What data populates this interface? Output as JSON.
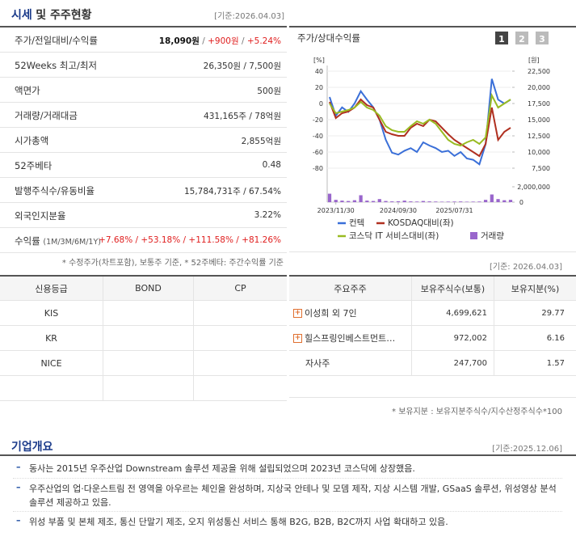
{
  "market": {
    "title_strong": "시세",
    "title_rest": "및 주주현황",
    "date": "[기준:2026.04.03]",
    "rows": [
      {
        "label": "주가/전일대비/수익률",
        "value": [
          {
            "text": "18,090원",
            "color": "#111111",
            "bold": true
          },
          {
            "text": " / ",
            "color": "#777777"
          },
          {
            "text": "+900원",
            "color": "#e02020"
          },
          {
            "text": " / ",
            "color": "#777777"
          },
          {
            "text": "+5.24%",
            "color": "#e02020"
          }
        ]
      },
      {
        "label": "52Weeks 최고/최저",
        "value": "26,350원 / 7,500원"
      },
      {
        "label": "액면가",
        "value": "500원"
      },
      {
        "label": "거래량/거래대금",
        "value": "431,165주 / 78억원"
      },
      {
        "label": "시가총액",
        "value": "2,855억원"
      },
      {
        "label": "52주베타",
        "value": "0.48"
      },
      {
        "label": "발행주식수/유동비율",
        "value": "15,784,731주 / 67.54%"
      },
      {
        "label": "외국인지분율",
        "value": "3.22%"
      },
      {
        "label": "수익률",
        "sublabel": "(1M/3M/6M/1Y)",
        "value": "+7.68% / +53.18% / +111.58% / +81.26%",
        "color": "#e02020"
      }
    ],
    "note": "* 수정주가(차트포함), 보통주 기준, * 52주베타: 주간수익률 기준"
  },
  "price_chart": {
    "type": "line",
    "title": "주가/상대수익률",
    "buttons": [
      "1",
      "2",
      "3"
    ],
    "ylabel": "[%]",
    "y2label": "[원]",
    "ylim": [
      -80,
      40
    ],
    "yticks": [
      40,
      20,
      0,
      -20,
      -40,
      -60,
      -80
    ],
    "y2lim": [
      7500,
      22500
    ],
    "y2ticks": [
      {
        "value": 22500,
        "label": "22,500"
      },
      {
        "value": 20000,
        "label": "20,000"
      },
      {
        "value": 17500,
        "label": "17,500"
      },
      {
        "value": 15000,
        "label": "15,000"
      },
      {
        "value": 12500,
        "label": "12,500"
      },
      {
        "value": 10000,
        "label": "10,000"
      },
      {
        "value": 7500,
        "label": "7,500"
      }
    ],
    "volume_lim": [
      0,
      2000000
    ],
    "volume_ticks": [
      {
        "value": 2000000,
        "label": "2,000,000"
      },
      0
    ],
    "xlim": [
      0,
      29
    ],
    "xticks": [
      {
        "value": 1,
        "label": "2023/11/30"
      },
      {
        "value": 11,
        "label": "2024/09/30"
      },
      {
        "value": 20,
        "label": "2025/07/31"
      }
    ],
    "series": [
      {
        "name": "컨텍",
        "color": "#3a6fd8",
        "axis": "y2",
        "values": [
          18500,
          15600,
          16900,
          16200,
          17500,
          19400,
          18100,
          16900,
          15000,
          11900,
          9900,
          9600,
          10200,
          10600,
          10000,
          11500,
          11000,
          10600,
          10000,
          10200,
          9400,
          10000,
          9000,
          8800,
          8100,
          11200,
          21300,
          18100,
          17500,
          18090
        ]
      },
      {
        "name": "KOSDAQ대비(좌)",
        "color": "#b03020",
        "values": [
          2,
          -18,
          -12,
          -10,
          -5,
          5,
          -2,
          -5,
          -20,
          -35,
          -38,
          -40,
          -40,
          -30,
          -25,
          -28,
          -20,
          -22,
          -30,
          -38,
          -45,
          -50,
          -55,
          -60,
          -65,
          -50,
          -5,
          -45,
          -35,
          -30
        ]
      },
      {
        "name": "코스닥 IT 서비스대비(좌)",
        "color": "#99bb22",
        "values": [
          0,
          -12,
          -10,
          -8,
          -5,
          2,
          -5,
          -8,
          -15,
          -28,
          -33,
          -35,
          -35,
          -28,
          -22,
          -25,
          -20,
          -25,
          -35,
          -45,
          -50,
          -52,
          -48,
          -45,
          -50,
          -42,
          10,
          -5,
          0,
          5
        ]
      }
    ],
    "volume": {
      "name": "거래량",
      "color": "#9966cc",
      "values": [
        1100000,
        300000,
        200000,
        150000,
        250000,
        900000,
        200000,
        150000,
        400000,
        150000,
        100000,
        120000,
        200000,
        100000,
        80000,
        150000,
        100000,
        80000,
        60000,
        70000,
        80000,
        90000,
        60000,
        70000,
        80000,
        300000,
        1000000,
        400000,
        250000,
        300000
      ]
    }
  },
  "credit": {
    "header": [
      "신용등급",
      "BOND",
      "CP"
    ],
    "agencies": [
      "KIS",
      "KR",
      "NICE"
    ]
  },
  "holders": {
    "date": "[기준: 2026.04.03]",
    "header": [
      "주요주주",
      "보유주식수(보통)",
      "보유지분(%)"
    ],
    "rows": [
      {
        "name": "이성희 외 7인",
        "shares": "4,699,621",
        "pct": "29.77",
        "expandable": true
      },
      {
        "name": "힐스프링인베스트먼트…",
        "shares": "972,002",
        "pct": "6.16",
        "expandable": true
      },
      {
        "name": "자사주",
        "shares": "247,700",
        "pct": "1.57",
        "expandable": false
      }
    ],
    "note": "* 보유지분 : 보유지분주식수/지수산정주식수*100"
  },
  "overview": {
    "title": "기업개요",
    "date": "[기준:2025.12.06]",
    "bullets": [
      "동사는 2015년 우주산업 Downstream 솔루션 제공을 위해 설립되었으며 2023년 코스닥에 상장했음.",
      "우주산업의 업·다운스트림 전 영역을 아우르는 체인을 완성하며, 지상국 안테나 및 모뎀 제작, 지상 시스템 개발, GSaaS 솔루션, 위성영상 분석 솔루션 제공하고 있음.",
      "위성 부품 및 본체 제조, 통신 단말기 제조, 오지 위성통신 서비스 통해 B2G, B2B, B2C까지 사업 확대하고 있음."
    ]
  }
}
